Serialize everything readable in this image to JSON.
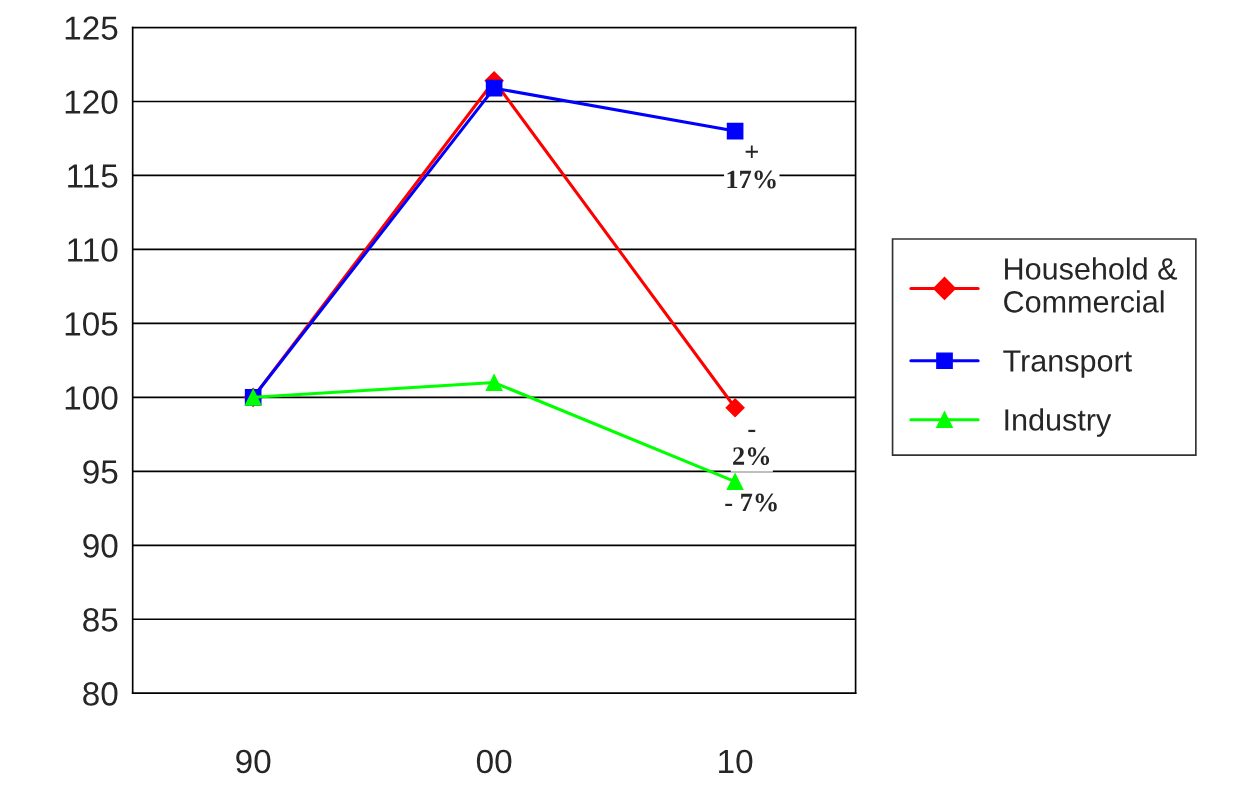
{
  "chart_data": {
    "type": "line",
    "categories": [
      "90",
      "00",
      "10"
    ],
    "series": [
      {
        "name": "Household &\nCommercial",
        "color": "#ff0000",
        "marker": "diamond",
        "values": [
          100,
          121.4,
          99.3
        ]
      },
      {
        "name": "Transport",
        "color": "#0000ff",
        "marker": "square",
        "values": [
          100,
          120.9,
          118.0
        ]
      },
      {
        "name": "Industry",
        "color": "#00ff00",
        "marker": "triangle",
        "values": [
          100,
          101.0,
          94.3
        ]
      }
    ],
    "ylim": [
      80,
      125
    ],
    "yticks": [
      80,
      85,
      90,
      95,
      100,
      105,
      110,
      115,
      120,
      125
    ],
    "grid": "y",
    "legend": "right",
    "line_style": "solid",
    "annotations": [
      {
        "text": "+\n17%",
        "x": "10",
        "y": 118.0
      },
      {
        "text": "-\n2%",
        "x": "10",
        "y": 99.3
      },
      {
        "text": "- 7%",
        "x": "10",
        "y": 94.3
      }
    ]
  }
}
